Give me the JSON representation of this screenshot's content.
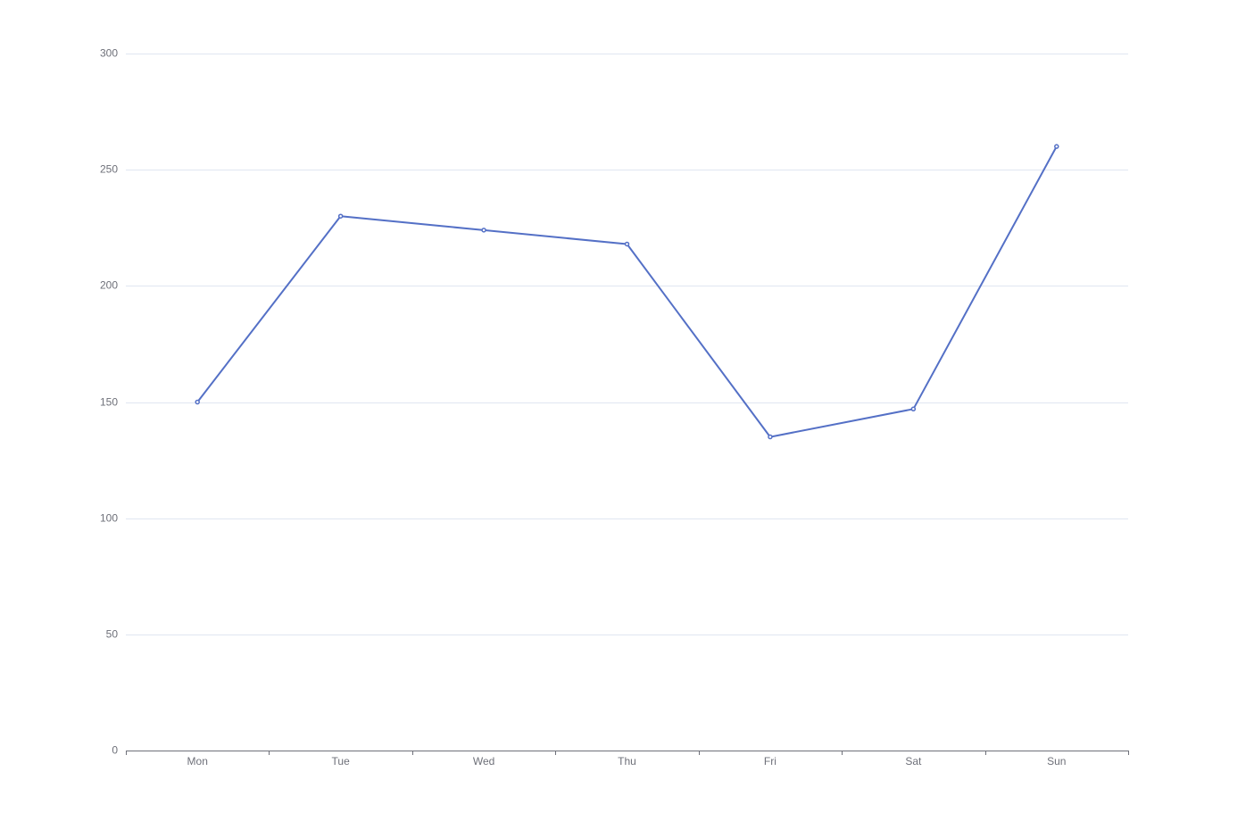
{
  "colors": {
    "series": "#5470c6",
    "grid": "#e0e6f1",
    "axis": "#6e7079",
    "label": "#6e7079",
    "background": "#ffffff"
  },
  "chart_data": {
    "type": "line",
    "categories": [
      "Mon",
      "Tue",
      "Wed",
      "Thu",
      "Fri",
      "Sat",
      "Sun"
    ],
    "series": [
      {
        "values": [
          150,
          230,
          224,
          218,
          135,
          147,
          260
        ]
      }
    ],
    "ylim": [
      0,
      300
    ],
    "yticks": [
      0,
      50,
      100,
      150,
      200,
      250,
      300
    ],
    "grid": true,
    "legend": "none",
    "title": "",
    "xlabel": "",
    "ylabel": ""
  }
}
